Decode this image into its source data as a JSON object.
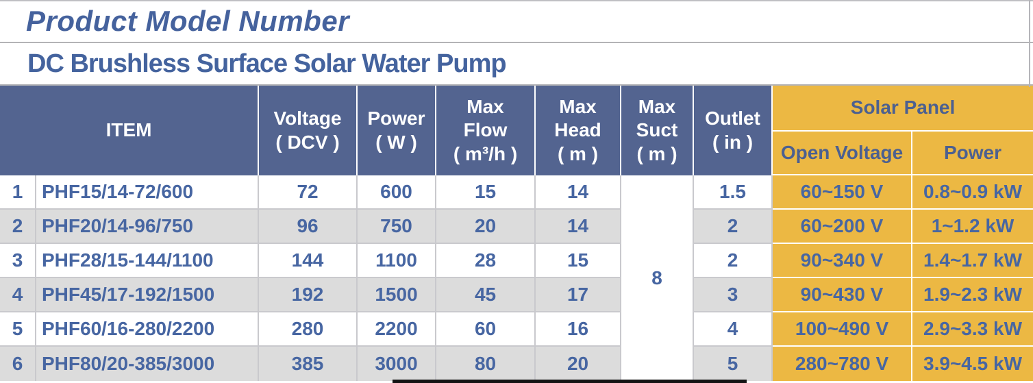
{
  "header": {
    "title": "Product Model Number",
    "subtitle": "DC Brushless Surface Solar Water Pump"
  },
  "colors": {
    "header_bg": "#536490",
    "accent_gold": "#ecb843",
    "text_blue": "#4766a2",
    "alt_row_bg": "#dcdcdc",
    "grid_line": "#c9c9cd"
  },
  "table": {
    "headers": {
      "item": "ITEM",
      "voltage": "Voltage\n( DCV )",
      "power": "Power\n( W )",
      "max_flow": "Max\nFlow\n( m³/h )",
      "max_head": "Max\nHead\n( m )",
      "max_suct": "Max\nSuct\n( m )",
      "outlet": "Outlet\n( in )",
      "solar_panel": "Solar Panel",
      "solar_sub_open_voltage": "Open Voltage",
      "solar_sub_power": "Power"
    },
    "max_suct_shared_value": "8",
    "rows": [
      {
        "no": "1",
        "model": "PHF15/14-72/600",
        "voltage": "72",
        "power": "600",
        "max_flow": "15",
        "max_head": "14",
        "outlet": "1.5",
        "open_voltage": "60~150 V",
        "solar_power": "0.8~0.9 kW"
      },
      {
        "no": "2",
        "model": "PHF20/14-96/750",
        "voltage": "96",
        "power": "750",
        "max_flow": "20",
        "max_head": "14",
        "outlet": "2",
        "open_voltage": "60~200 V",
        "solar_power": "1~1.2 kW"
      },
      {
        "no": "3",
        "model": "PHF28/15-144/1100",
        "voltage": "144",
        "power": "1100",
        "max_flow": "28",
        "max_head": "15",
        "outlet": "2",
        "open_voltage": "90~340 V",
        "solar_power": "1.4~1.7 kW"
      },
      {
        "no": "4",
        "model": "PHF45/17-192/1500",
        "voltage": "192",
        "power": "1500",
        "max_flow": "45",
        "max_head": "17",
        "outlet": "3",
        "open_voltage": "90~430 V",
        "solar_power": "1.9~2.3 kW"
      },
      {
        "no": "5",
        "model": "PHF60/16-280/2200",
        "voltage": "280",
        "power": "2200",
        "max_flow": "60",
        "max_head": "16",
        "outlet": "4",
        "open_voltage": "100~490 V",
        "solar_power": "2.9~3.3 kW"
      },
      {
        "no": "6",
        "model": "PHF80/20-385/3000",
        "voltage": "385",
        "power": "3000",
        "max_flow": "80",
        "max_head": "20",
        "outlet": "5",
        "open_voltage": "280~780 V",
        "solar_power": "3.9~4.5 kW"
      }
    ]
  }
}
